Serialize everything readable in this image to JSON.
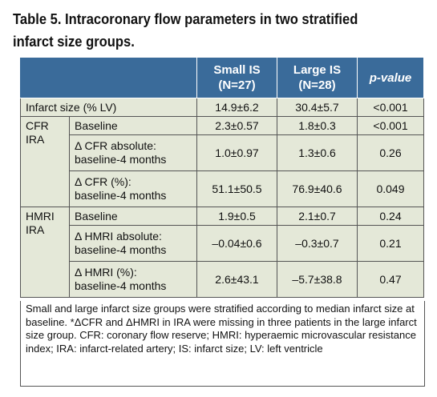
{
  "title": "Table 5. Intracoronary flow parameters in two stratified infarct size groups.",
  "headers": {
    "small_is": "Small IS",
    "small_is_n": "(N=27)",
    "large_is": "Large IS",
    "large_is_n": "(N=28)",
    "p_value": "p-value"
  },
  "rows": {
    "infarct_size": {
      "label": "Infarct size (% LV)",
      "small": "14.9±6.2",
      "large": "30.4±5.7",
      "p": "<0.001"
    },
    "cfr": {
      "group_line1": "CFR",
      "group_line2": "IRA",
      "baseline": {
        "label": "Baseline",
        "small": "2.3±0.57",
        "large": "1.8±0.3",
        "p": "<0.001"
      },
      "delta_abs": {
        "label_line1": "Δ CFR absolute:",
        "label_line2": "baseline-4 months",
        "small": "1.0±0.97",
        "large": "1.3±0.6",
        "p": "0.26"
      },
      "delta_pct": {
        "label_line1": "Δ CFR (%):",
        "label_line2": "baseline-4 months",
        "small": "51.1±50.5",
        "large": "76.9±40.6",
        "p": "0.049"
      }
    },
    "hmri": {
      "group_line1": "HMRI",
      "group_line2": "IRA",
      "baseline": {
        "label": "Baseline",
        "small": "1.9±0.5",
        "large": "2.1±0.7",
        "p": "0.24"
      },
      "delta_abs": {
        "label_line1": "Δ HMRI absolute:",
        "label_line2": "baseline-4 months",
        "small": "–0.04±0.6",
        "large": "–0.3±0.7",
        "p": "0.21"
      },
      "delta_pct": {
        "label_line1": "Δ HMRI (%):",
        "label_line2": "baseline-4 months",
        "small": "2.6±43.1",
        "large": "–5.7±38.8",
        "p": "0.47"
      }
    }
  },
  "footnote": "Small and large infarct size groups were stratified according to median infarct size at baseline. *ΔCFR and ΔHMRI in IRA were missing in three patients in the large infarct size group. CFR: coronary flow reserve; HMRI: hyperaemic microvascular resistance index; IRA: infarct-related artery; IS: infarct size; LV: left ventricle",
  "colors": {
    "header_bg": "#3a6b9a",
    "shaded_row": "#e4e8d8"
  }
}
